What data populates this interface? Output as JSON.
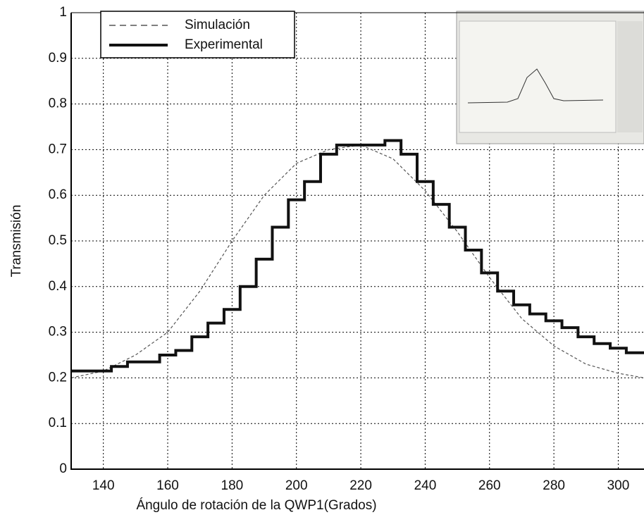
{
  "chart_data": {
    "type": "line",
    "xlabel": "Ángulo de rotación de la QWP1(Grados)",
    "ylabel": "Transmisión",
    "xlim": [
      130,
      308
    ],
    "xticks": [
      140,
      160,
      180,
      200,
      220,
      240,
      260,
      280,
      300
    ],
    "ylim": [
      0,
      1
    ],
    "yticks": [
      0,
      0.1,
      0.2,
      0.3,
      0.4,
      0.5,
      0.6,
      0.7,
      0.8,
      0.9,
      1
    ],
    "grid": true,
    "legend": "upper left",
    "series": [
      {
        "name": "Simulación",
        "color": "#555555",
        "linestyle": "dashed",
        "drawstyle": "default",
        "x": [
          130,
          140,
          150,
          160,
          170,
          180,
          190,
          200,
          210,
          220,
          230,
          240,
          250,
          260,
          270,
          280,
          290,
          300,
          308
        ],
        "values": [
          0.2,
          0.215,
          0.25,
          0.3,
          0.39,
          0.5,
          0.6,
          0.67,
          0.7,
          0.71,
          0.68,
          0.61,
          0.52,
          0.42,
          0.33,
          0.27,
          0.23,
          0.21,
          0.2
        ]
      },
      {
        "name": "Experimental",
        "color": "#111111",
        "linestyle": "solid",
        "drawstyle": "steps-mid",
        "x": [
          130,
          135,
          140,
          145,
          150,
          155,
          160,
          165,
          170,
          175,
          180,
          185,
          190,
          195,
          200,
          205,
          210,
          215,
          220,
          225,
          230,
          235,
          240,
          245,
          250,
          255,
          260,
          265,
          270,
          275,
          280,
          285,
          290,
          295,
          300,
          305,
          308
        ],
        "values": [
          0.215,
          0.215,
          0.215,
          0.225,
          0.235,
          0.235,
          0.25,
          0.26,
          0.29,
          0.32,
          0.35,
          0.4,
          0.46,
          0.53,
          0.59,
          0.63,
          0.69,
          0.71,
          0.71,
          0.71,
          0.72,
          0.69,
          0.63,
          0.58,
          0.53,
          0.48,
          0.43,
          0.39,
          0.36,
          0.34,
          0.325,
          0.31,
          0.29,
          0.275,
          0.265,
          0.255,
          0.255
        ]
      }
    ]
  }
}
